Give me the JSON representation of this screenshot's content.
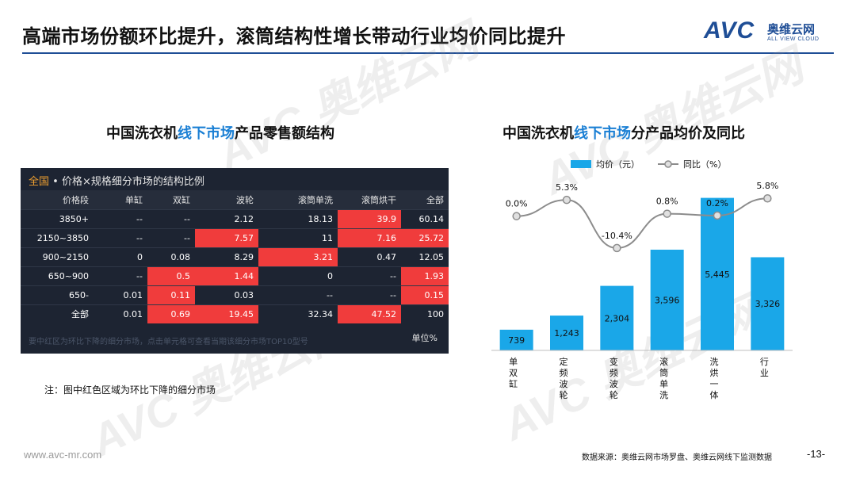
{
  "header": {
    "title": "高端市场份额环比提升，滚筒结构性增长带动行业均价同比提升",
    "logo_mark": "AVC",
    "logo_cn": "奥维云网",
    "logo_en": "ALL VIEW CLOUD"
  },
  "watermark": {
    "mark": "AVC 奥维云网",
    "sub": "ALL VIEW CLOUD"
  },
  "left_chart": {
    "heading_pre": "中国洗衣机",
    "heading_hl": "线下市场",
    "heading_post": "产品零售额结构",
    "panel": {
      "scope": "全国",
      "title_rest": " • 价格×规格细分市场的结构比例",
      "unit": "单位%",
      "footnote": "要中红区为环比下降的细分市场，点击单元格可查看当期该细分市场TOP10型号"
    },
    "note": "注：图中红色区域为环比下降的细分市场"
  },
  "chart_data": [
    {
      "type": "table",
      "columns": [
        "价格段",
        "单缸",
        "双缸",
        "波轮",
        "滚筒单洗",
        "滚筒烘干",
        "全部"
      ],
      "rows": [
        {
          "cells": [
            "3850+",
            "--",
            "--",
            "2.12",
            "18.13",
            "39.9",
            "60.14"
          ],
          "decline": [
            false,
            false,
            false,
            false,
            false,
            true,
            false
          ]
        },
        {
          "cells": [
            "2150~3850",
            "--",
            "--",
            "7.57",
            "11",
            "7.16",
            "25.72"
          ],
          "decline": [
            false,
            false,
            false,
            true,
            false,
            true,
            true
          ]
        },
        {
          "cells": [
            "900~2150",
            "0",
            "0.08",
            "8.29",
            "3.21",
            "0.47",
            "12.05"
          ],
          "decline": [
            false,
            false,
            false,
            false,
            true,
            false,
            false
          ]
        },
        {
          "cells": [
            "650~900",
            "--",
            "0.5",
            "1.44",
            "0",
            "--",
            "1.93"
          ],
          "decline": [
            false,
            false,
            true,
            true,
            false,
            false,
            true
          ]
        },
        {
          "cells": [
            "650-",
            "0.01",
            "0.11",
            "0.03",
            "--",
            "--",
            "0.15"
          ],
          "decline": [
            false,
            false,
            true,
            false,
            false,
            false,
            true
          ]
        },
        {
          "cells": [
            "全部",
            "0.01",
            "0.69",
            "19.45",
            "32.34",
            "47.52",
            "100"
          ],
          "decline": [
            false,
            false,
            true,
            true,
            false,
            true,
            false
          ]
        }
      ],
      "decline_color": "#f03c3c"
    },
    {
      "type": "bar",
      "title_pre": "中国洗衣机",
      "title_hl": "线下市场",
      "title_post": "分产品均价及同比",
      "categories": [
        "单双缸",
        "定频波轮",
        "变频波轮",
        "滚筒单洗",
        "洗烘一体",
        "行业"
      ],
      "series": [
        {
          "name": "均价（元）",
          "type": "bar",
          "values": [
            739,
            1243,
            2304,
            3596,
            5445,
            3326
          ],
          "labels": [
            "739",
            "1,243",
            "2,304",
            "3,596",
            "5,445",
            "3,326"
          ],
          "color": "#1aa7e8"
        },
        {
          "name": "同比（%）",
          "type": "line",
          "values": [
            0.0,
            5.3,
            -10.4,
            0.8,
            0.2,
            5.8
          ],
          "labels": [
            "0.0%",
            "5.3%",
            "-10.4%",
            "0.8%",
            "0.2%",
            "5.8%"
          ],
          "color": "#8c8c8c"
        }
      ],
      "ylim": [
        0,
        6000
      ],
      "y2lim": [
        -20,
        10
      ],
      "legend": "top"
    }
  ],
  "footer": {
    "site": "www.avc-mr.com",
    "source": "数据来源：奥维云网市场罗盘、奥维云网线下监测数据",
    "page": "-13-"
  }
}
